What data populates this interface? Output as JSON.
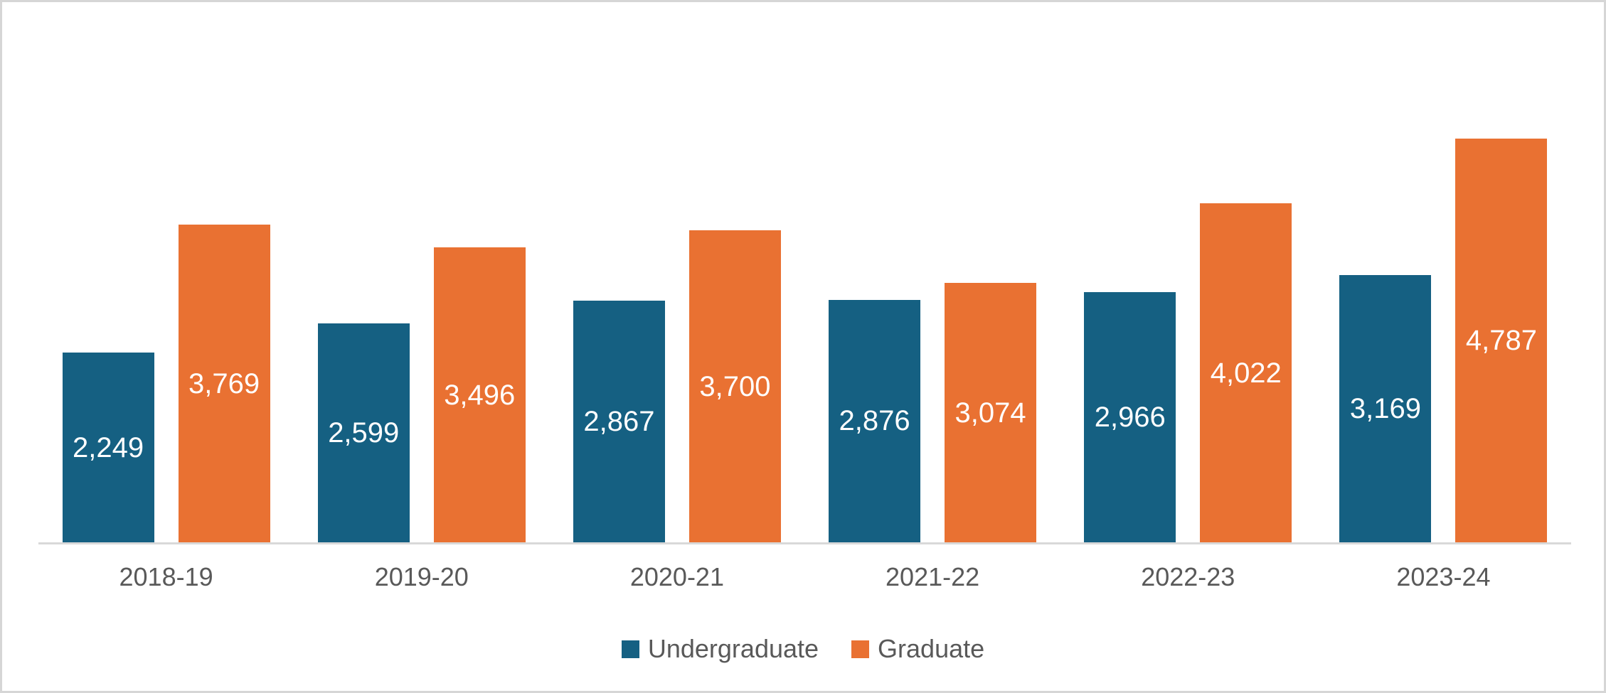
{
  "chart_data": {
    "type": "bar",
    "title": "",
    "categories": [
      "2018-19",
      "2019-20",
      "2020-21",
      "2021-22",
      "2022-23",
      "2023-24"
    ],
    "series": [
      {
        "name": "Undergraduate",
        "color": "#156082",
        "values": [
          2249,
          2599,
          2867,
          2876,
          2966,
          3169
        ],
        "labels": [
          "2,249",
          "2,599",
          "2,867",
          "2,876",
          "2,966",
          "3,169"
        ]
      },
      {
        "name": "Graduate",
        "color": "#E97132",
        "values": [
          3769,
          3496,
          3700,
          3074,
          4022,
          4787
        ],
        "labels": [
          "3,769",
          "3,496",
          "3,700",
          "3,074",
          "4,022",
          "4,787"
        ]
      }
    ],
    "xlabel": "",
    "ylabel": "",
    "ylim": [
      0,
      5000
    ],
    "grid": false,
    "y_axis_visible": false,
    "value_label_position": "center-inside",
    "legend_position": "bottom-center"
  },
  "legend": {
    "items": [
      {
        "label": "Undergraduate",
        "color": "#156082"
      },
      {
        "label": "Graduate",
        "color": "#E97132"
      }
    ]
  },
  "colors": {
    "background": "#FFFFFF",
    "frame_border": "#D6D6D6",
    "axis_line": "#D9D9D9",
    "category_text": "#595959",
    "legend_text": "#595959",
    "value_text": "#FFFFFF"
  }
}
